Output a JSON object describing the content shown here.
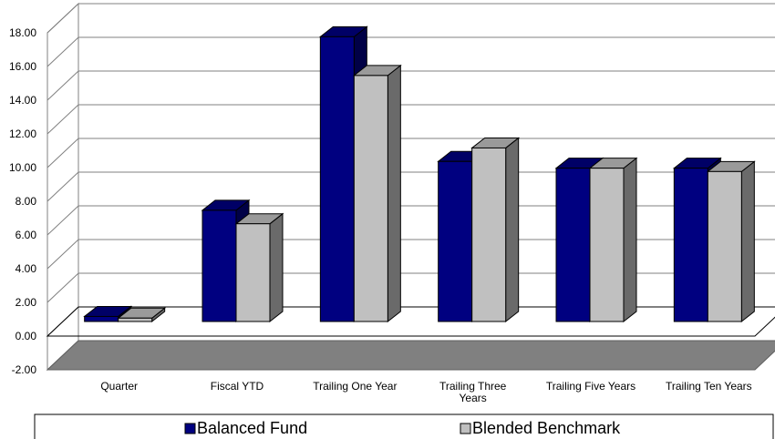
{
  "chart_data": {
    "type": "bar",
    "style": "3d-clustered",
    "categories": [
      [
        "Quarter"
      ],
      [
        "Fiscal YTD"
      ],
      [
        "Trailing One Year"
      ],
      [
        "Trailing Three",
        "Years"
      ],
      [
        "Trailing Five Years"
      ],
      [
        "Trailing Ten Years"
      ]
    ],
    "series": [
      {
        "name": "Balanced Fund",
        "values": [
          0.3,
          6.6,
          16.9,
          9.5,
          9.1,
          9.1
        ],
        "color": "#000080"
      },
      {
        "name": "Blended Benchmark",
        "values": [
          0.2,
          5.8,
          14.6,
          10.3,
          9.1,
          8.9
        ],
        "color": "#c0c0c0"
      }
    ],
    "ylim": [
      -2,
      18
    ],
    "yticks": [
      "-2.00",
      "0.00",
      "2.00",
      "4.00",
      "6.00",
      "8.00",
      "10.00",
      "12.00",
      "14.00",
      "16.00",
      "18.00"
    ],
    "grid": true,
    "legend": "bottom",
    "title": "",
    "xlabel": "",
    "ylabel": ""
  }
}
